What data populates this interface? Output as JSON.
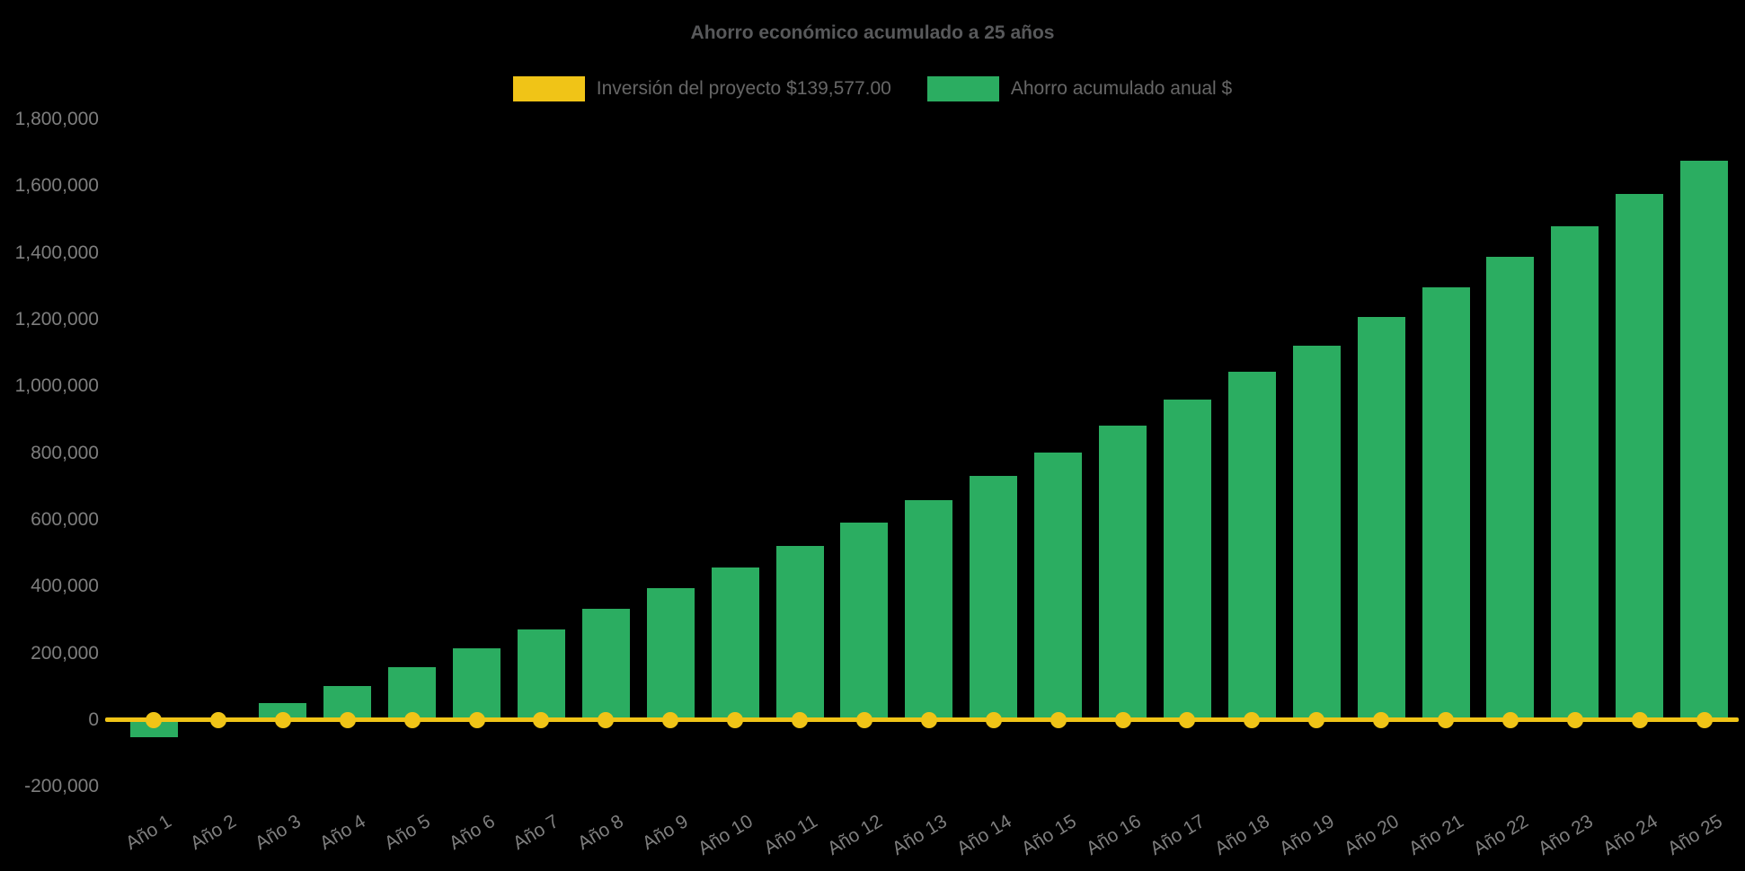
{
  "title": "Ahorro económico acumulado a 25 años",
  "chart_data": {
    "type": "bar",
    "title": "Ahorro económico acumulado a 25 años",
    "background": "#000000",
    "grid": false,
    "legend_position": "top",
    "categories": [
      "Año 1",
      "Año 2",
      "Año 3",
      "Año 4",
      "Año 5",
      "Año 6",
      "Año 7",
      "Año 8",
      "Año 9",
      "Año 10",
      "Año 11",
      "Año 12",
      "Año 13",
      "Año 14",
      "Año 15",
      "Año 16",
      "Año 17",
      "Año 18",
      "Año 19",
      "Año 20",
      "Año 21",
      "Año 22",
      "Año 23",
      "Año 24",
      "Año 25"
    ],
    "series": [
      {
        "name": "Inversión del proyecto $139,577.00",
        "type": "line",
        "color": "#F0C417",
        "investment_amount": 139577,
        "note": "flat line with round markers drawn at y≈0 across all 25 years",
        "values": [
          0,
          0,
          0,
          0,
          0,
          0,
          0,
          0,
          0,
          0,
          0,
          0,
          0,
          0,
          0,
          0,
          0,
          0,
          0,
          0,
          0,
          0,
          0,
          0,
          0
        ]
      },
      {
        "name": "Ahorro acumulado anual $",
        "type": "bar",
        "color": "#2BAD61",
        "values": [
          -52000,
          3000,
          50000,
          102000,
          160000,
          214000,
          272000,
          333000,
          395000,
          458000,
          522000,
          591000,
          659000,
          732000,
          803000,
          883000,
          960000,
          1043000,
          1122000,
          1207000,
          1298000,
          1387000,
          1480000,
          1577000,
          1675000
        ]
      }
    ],
    "ylim": [
      -200000,
      1800000
    ],
    "yticks": [
      1800000,
      1600000,
      1400000,
      1200000,
      1000000,
      800000,
      600000,
      400000,
      200000,
      0,
      -200000
    ],
    "xlabel": "",
    "ylabel": ""
  },
  "colors": {
    "background": "#000000",
    "bar_green": "#2BAD61",
    "line_yellow": "#F0C417",
    "title_gray": "#58595B",
    "tick_gray": "#7E7E7E",
    "legend_text_gray": "#666666"
  }
}
